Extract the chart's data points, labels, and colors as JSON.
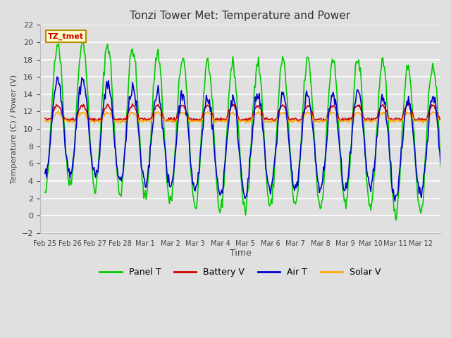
{
  "title": "Tonzi Tower Met: Temperature and Power",
  "xlabel": "Time",
  "ylabel": "Temperature (C) / Power (V)",
  "ylim": [
    -2,
    22
  ],
  "yticks": [
    -2,
    0,
    2,
    4,
    6,
    8,
    10,
    12,
    14,
    16,
    18,
    20,
    22
  ],
  "annotation_text": "TZ_tmet",
  "annotation_bg": "#ffffcc",
  "annotation_border": "#bb8800",
  "annotation_text_color": "#cc0000",
  "colors": {
    "Panel T": "#00cc00",
    "Battery V": "#cc0000",
    "Air T": "#0000cc",
    "Solar V": "#ffaa00"
  },
  "bg_color": "#e0e0e0",
  "grid_color": "#ffffff",
  "tick_labels": [
    "Feb 25",
    "Feb 26",
    "Feb 27",
    "Feb 28",
    "Mar 1",
    "Mar 2",
    "Mar 3",
    "Mar 4",
    "Mar 5",
    "Mar 6",
    "Mar 7",
    "Mar 8",
    "Mar 9",
    "Mar 10",
    "Mar 11",
    "Mar 12"
  ],
  "num_points": 500,
  "linewidth": 1.2
}
